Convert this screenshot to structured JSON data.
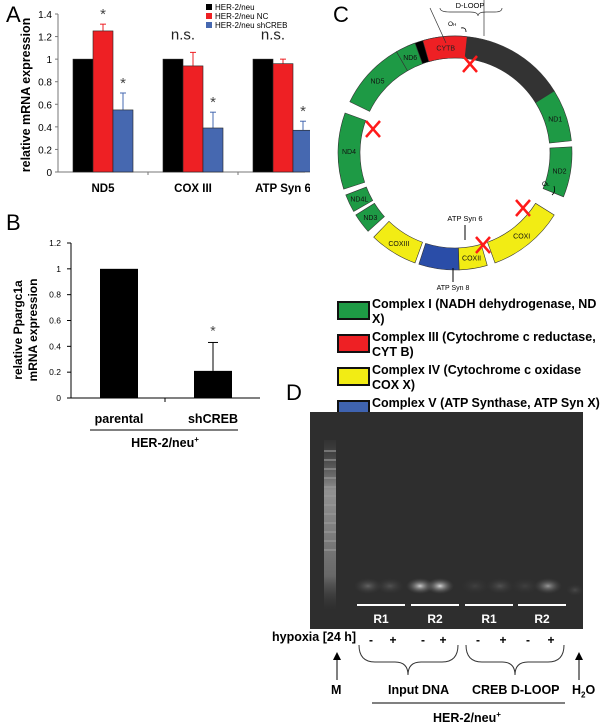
{
  "panels": {
    "a": "A",
    "b": "B",
    "c": "C",
    "d": "D"
  },
  "chart_data": [
    {
      "type": "bar",
      "panel": "A",
      "categories": [
        "ND5",
        "COX III",
        "ATP Syn 6"
      ],
      "series": [
        {
          "name": "HER-2/neu",
          "color": "#000000",
          "values": [
            1,
            1,
            1
          ],
          "errors": [
            0,
            0,
            0
          ]
        },
        {
          "name": "HER-2/neu NC",
          "color": "#ee2024",
          "values": [
            1.25,
            0.94,
            0.96
          ],
          "errors": [
            0.06,
            0.12,
            0.04
          ]
        },
        {
          "name": "HER-2/neu shCREB",
          "color": "#4668b0",
          "values": [
            0.55,
            0.39,
            0.37
          ],
          "errors": [
            0.15,
            0.14,
            0.08
          ]
        }
      ],
      "annotations": [
        [
          "",
          "*",
          "*"
        ],
        [
          "n.s.",
          "",
          "*"
        ],
        [
          "n.s.",
          "",
          "*"
        ]
      ],
      "ylabel": "relative mRNA expression",
      "ylim": [
        0,
        1.4
      ],
      "yticks": [
        "0",
        "0.2",
        "0.4",
        "0.6",
        "0.8",
        "1",
        "1.2",
        "1.4"
      ],
      "legend": "top-right"
    },
    {
      "type": "bar",
      "panel": "B",
      "categories": [
        "parental",
        "shCREB"
      ],
      "values": [
        1,
        0.21
      ],
      "errors": [
        0,
        0.22
      ],
      "annotations": [
        "",
        "*"
      ],
      "color": "#000000",
      "ylabel_lines": [
        "relative Ppargc1a",
        "mRNA expression"
      ],
      "group_label": "HER-2/neu",
      "group_sup": "+",
      "ylim": [
        0,
        1.2
      ],
      "yticks": [
        "0",
        "0.2",
        "0.4",
        "0.6",
        "0.8",
        "1",
        "1.2"
      ]
    }
  ],
  "mito_map": {
    "dloop_label": "D-LOOP",
    "oh_label": "O",
    "oh_sub": "H",
    "ol_label": "O",
    "ol_sub": "L",
    "atp6_label": "ATP Syn 6",
    "atp8_label": "ATP Syn 8",
    "segments": [
      {
        "label": "",
        "kind": "dloop",
        "color": "#000000"
      },
      {
        "label": "",
        "kind": "noncoding",
        "color": "#333333"
      },
      {
        "label": "ND1",
        "kind": "complex1",
        "color": "#1e9a45"
      },
      {
        "label": "ND2",
        "kind": "complex1",
        "color": "#1e9a45"
      },
      {
        "label": "COXI",
        "kind": "complex4",
        "color": "#f2ec14"
      },
      {
        "label": "COXII",
        "kind": "complex4",
        "color": "#f2ec14"
      },
      {
        "label": "",
        "kind": "complex5",
        "color": "#2a4da8"
      },
      {
        "label": "COXIII",
        "kind": "complex4",
        "color": "#f2ec14"
      },
      {
        "label": "ND3",
        "kind": "complex1",
        "color": "#1e9a45"
      },
      {
        "label": "ND4L",
        "kind": "complex1",
        "color": "#1e9a45"
      },
      {
        "label": "ND4",
        "kind": "complex1",
        "color": "#1e9a45"
      },
      {
        "label": "ND5",
        "kind": "complex1",
        "color": "#1e9a45"
      },
      {
        "label": "ND6",
        "kind": "complex1",
        "color": "#1e9a45"
      },
      {
        "label": "CYTB",
        "kind": "complex3",
        "color": "#ee2024"
      }
    ],
    "marked_regions": [
      "D-LOOP",
      "ND5",
      "COXI",
      "COXII"
    ],
    "cross_color": "#ff1a1a",
    "legend": [
      {
        "label": "Complex I (NADH dehydrogenase, ND X)",
        "color": "#1e9a45"
      },
      {
        "label": "Complex III (Cytochrome c reductase, CYT B)",
        "color": "#ee2024"
      },
      {
        "label": "Complex IV (Cytochrome c oxidase COX X)",
        "color": "#f2ec14"
      },
      {
        "label": "Complex V (ATP Synthase, ATP Syn X)",
        "color": "#3f63b0"
      }
    ]
  },
  "gel": {
    "groups": [
      "R1",
      "R2",
      "R1",
      "R2"
    ],
    "row_label": "hypoxia [24 h]",
    "hypoxia": [
      "-",
      "+",
      "-",
      "+",
      "-",
      "+",
      "-",
      "+"
    ],
    "marker_label": "M",
    "input_label": "Input DNA",
    "creb_label": "CREB D-LOOP",
    "water_label": "H",
    "water_sub": "2",
    "water_tail": "O",
    "cell_line": "HER-2/neu",
    "cell_sup": "+"
  }
}
